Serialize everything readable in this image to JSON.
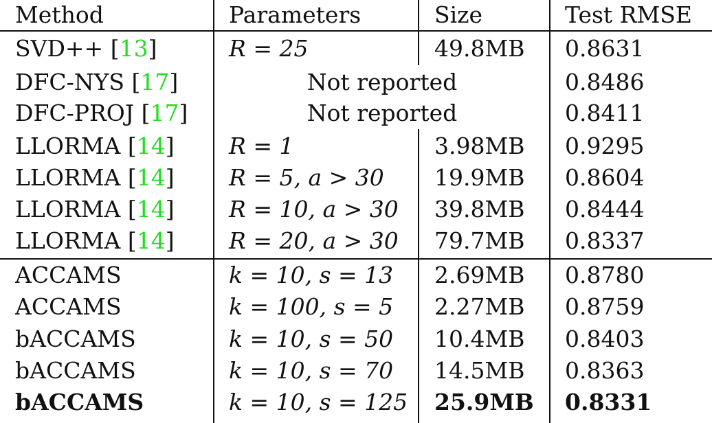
{
  "table": {
    "headers": [
      "Method",
      "Parameters",
      "Size",
      "Test RMSE"
    ],
    "rows": [
      {
        "method": "SVD++",
        "cite": "13",
        "params": "R = 25",
        "size": "49.8MB",
        "rmse": "0.8631"
      },
      {
        "method": "DFC-NYS",
        "cite": "17",
        "merged": "Not reported",
        "rmse": "0.8486"
      },
      {
        "method": "DFC-PROJ",
        "cite": "17",
        "merged": "Not reported",
        "rmse": "0.8411"
      },
      {
        "method": "LLORMA",
        "cite": "14",
        "params": "R = 1",
        "size": "3.98MB",
        "rmse": "0.9295"
      },
      {
        "method": "LLORMA",
        "cite": "14",
        "params": "R = 5, a > 30",
        "size": "19.9MB",
        "rmse": "0.8604"
      },
      {
        "method": "LLORMA",
        "cite": "14",
        "params": "R = 10, a > 30",
        "size": "39.8MB",
        "rmse": "0.8444"
      },
      {
        "method": "LLORMA",
        "cite": "14",
        "params": "R = 20, a > 30",
        "size": "79.7MB",
        "rmse": "0.8337"
      },
      {
        "method": "ACCAMS",
        "params": "k = 10, s = 13",
        "size": "2.69MB",
        "rmse": "0.8780"
      },
      {
        "method": "ACCAMS",
        "params": "k = 100, s = 5",
        "size": "2.27MB",
        "rmse": "0.8759"
      },
      {
        "method": "bACCAMS",
        "params": "k = 10, s = 50",
        "size": "10.4MB",
        "rmse": "0.8403"
      },
      {
        "method": "bACCAMS",
        "params": "k = 10, s = 70",
        "size": "14.5MB",
        "rmse": "0.8363"
      },
      {
        "method": "bACCAMS",
        "params": "k = 10, s = 125",
        "size": "25.9MB",
        "rmse": "0.8331"
      }
    ]
  }
}
